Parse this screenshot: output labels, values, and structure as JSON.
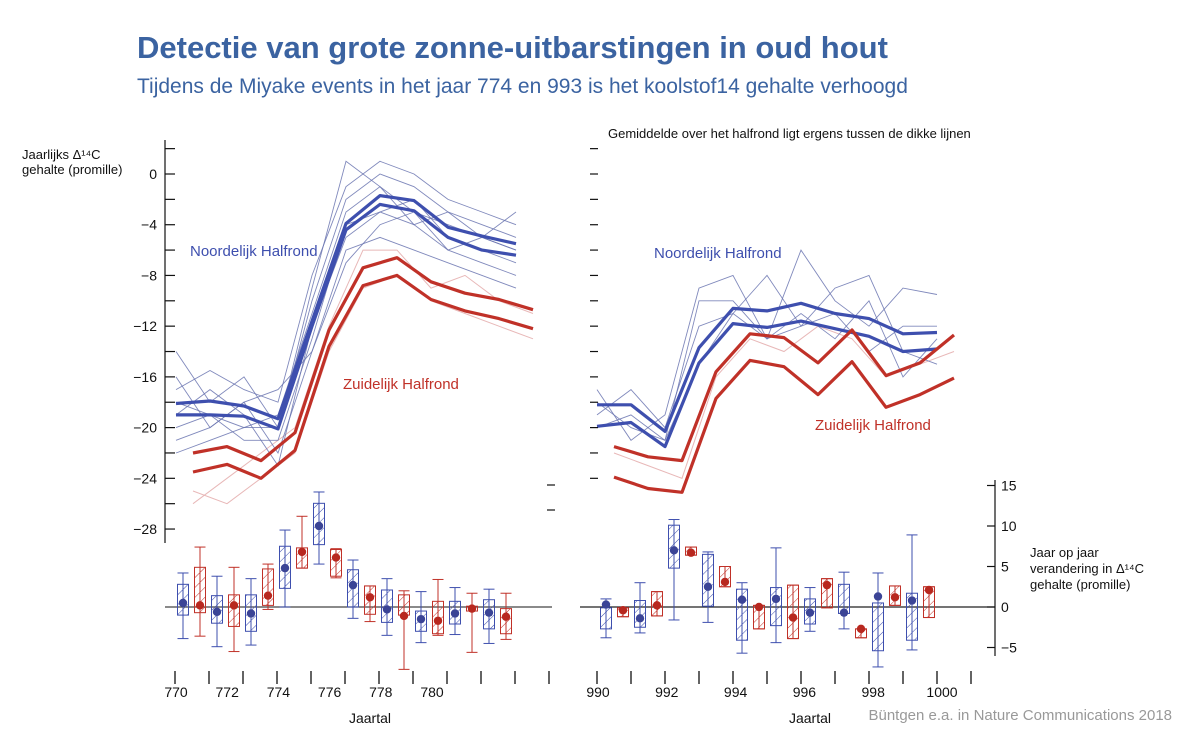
{
  "header": {
    "title": "Detectie van grote zonne-uitbarstingen in oud hout",
    "subtitle": "Tijdens de Miyake events in het jaar 774 en 993 is het koolstof14 gehalte verhoogd"
  },
  "source": "Büntgen e.a. in Nature Communications 2018",
  "colors": {
    "title": "#3b63a1",
    "north": "#3e4fae",
    "south": "#c03128",
    "north_thin": "#6a74b0",
    "south_thin": "#e8b8b8"
  },
  "chart_data": [
    {
      "type": "line",
      "panel": "774",
      "ylabel_lines": [
        "Jaarlijks Δ¹⁴C",
        "gehalte (promille)"
      ],
      "yticks": [
        0,
        -4,
        -8,
        -12,
        -16,
        -20,
        -24,
        -28
      ],
      "ylim": [
        -28,
        2
      ],
      "xlabel": "Jaartal",
      "xtick_labels": [
        "770",
        "772",
        "774",
        "776",
        "778",
        "780"
      ],
      "annotations": {
        "north": "Noordelijk Halfrond",
        "south": "Zuidelijk Halfrond"
      },
      "north_x": [
        770,
        771,
        772,
        773,
        774,
        775,
        776,
        777,
        778,
        779,
        780
      ],
      "south_x": [
        770.5,
        771.5,
        772.5,
        773.5,
        774.5,
        775.5,
        776.5,
        777.5,
        778.5,
        779.5,
        780.5
      ],
      "north_thick": [
        [
          -18.1,
          -17.9,
          -18.3,
          -19.3,
          -11.6,
          -3.9,
          -1.7,
          -2.1,
          -4.2,
          -4.9,
          -5.5
        ],
        [
          -19.0,
          -19.0,
          -19.1,
          -20.1,
          -12.0,
          -4.4,
          -2.4,
          -2.9,
          -5.0,
          -6.0,
          -6.4
        ]
      ],
      "south_thick": [
        [
          -22.0,
          -21.5,
          -22.6,
          -20.4,
          -12.3,
          -7.4,
          -6.6,
          -8.5,
          -9.4,
          -9.9,
          -10.7
        ],
        [
          -23.5,
          -22.9,
          -24.0,
          -21.8,
          -13.6,
          -8.8,
          -8.0,
          -9.9,
          -10.8,
          -11.4,
          -12.2
        ]
      ],
      "north_thin": [
        [
          -17,
          -15.5,
          -17,
          -18,
          -8,
          -1,
          1,
          0,
          -2,
          -3,
          -4
        ],
        [
          -20,
          -19,
          -21,
          -21,
          -13,
          -4,
          -3,
          -4,
          -6,
          -7,
          -8
        ],
        [
          -14,
          -18,
          -16,
          -20,
          -10,
          -2,
          0,
          -1,
          -3,
          -5,
          -6
        ],
        [
          -21,
          -20,
          -18,
          -22,
          -14,
          -6,
          -5,
          -6,
          -7,
          -8,
          -9
        ],
        [
          -18,
          -19,
          -20,
          -19,
          -11,
          -3,
          -1,
          -3,
          -4,
          -5,
          -3
        ],
        [
          -19,
          -17,
          -19,
          -23,
          -12,
          -5,
          -3,
          -2,
          -5,
          -6,
          -7
        ],
        [
          -22,
          -21,
          -20,
          -20,
          -9,
          1,
          -1,
          -4,
          -3,
          -4,
          -5
        ],
        [
          -16,
          -20,
          -18,
          -17,
          -14,
          -7,
          -4,
          -3,
          -6,
          -5,
          -6
        ]
      ],
      "south_thin": [
        [
          -25,
          -26,
          -24,
          -22,
          -14,
          -9,
          -8,
          -10,
          -11,
          -12,
          -13
        ],
        [
          -26,
          -24,
          -22,
          -20,
          -12,
          -6,
          -6,
          -9,
          -8,
          -10,
          -11
        ]
      ]
    },
    {
      "type": "line",
      "panel": "993",
      "note": "Gemiddelde over het halfrond ligt ergens tussen de dikke lijnen",
      "ylim": [
        -28,
        2
      ],
      "xlabel": "Jaartal",
      "xtick_labels": [
        "990",
        "992",
        "994",
        "996",
        "998",
        "1000"
      ],
      "annotations": {
        "north": "Noordelijk Halfrond",
        "south": "Zuidelijk Halfrond"
      },
      "north_x": [
        990,
        991,
        992,
        993,
        994,
        995,
        996,
        997,
        998,
        999,
        1000
      ],
      "south_x": [
        990.5,
        991.5,
        992.5,
        993.5,
        994.5,
        995.5,
        996.5,
        997.5,
        998.5,
        999.5,
        1000.5
      ],
      "north_thick": [
        [
          -18.2,
          -18.2,
          -20.3,
          -13.7,
          -10.6,
          -10.8,
          -10.2,
          -11.0,
          -11.4,
          -12.6,
          -12.5
        ],
        [
          -19.9,
          -19.6,
          -21.5,
          -14.9,
          -11.8,
          -12.1,
          -11.6,
          -12.2,
          -12.8,
          -14.0,
          -13.8
        ]
      ],
      "south_thick": [
        [
          -21.5,
          -22.3,
          -22.6,
          -15.6,
          -12.6,
          -12.9,
          -14.9,
          -12.3,
          -15.9,
          -14.9,
          -12.7
        ],
        [
          -23.9,
          -24.8,
          -25.1,
          -17.7,
          -14.7,
          -15.2,
          -17.4,
          -14.8,
          -18.4,
          -17.4,
          -16.1
        ]
      ],
      "north_thin": [
        [
          -17,
          -21,
          -19,
          -9,
          -8,
          -13,
          -6,
          -10,
          -12,
          -9,
          -9.5
        ],
        [
          -19,
          -17,
          -20,
          -12,
          -11,
          -8,
          -12,
          -9,
          -8,
          -14,
          -15
        ],
        [
          -20,
          -19,
          -21,
          -10,
          -10,
          -13,
          -11,
          -13,
          -10,
          -16,
          -13
        ],
        [
          -18,
          -20,
          -21,
          -15,
          -11,
          -13,
          -12,
          -11,
          -14,
          -12,
          -12
        ]
      ],
      "south_thin": [
        [
          -22,
          -23,
          -24,
          -16,
          -13,
          -14,
          -12,
          -13,
          -16,
          -15,
          -14
        ]
      ]
    },
    {
      "type": "box",
      "panel": "774-change",
      "ylabel_lines": [
        "Jaar op jaar",
        "verandering in Δ¹⁴C",
        "gehalte (promille)"
      ],
      "yticks": [
        15,
        10,
        5,
        0,
        -5
      ],
      "ylim": [
        -7,
        15
      ],
      "boxes": [
        {
          "hemisphere": "north",
          "whisker_high": 4.2,
          "q3": 2.8,
          "q1": -1.0,
          "whisker_low": -3.9,
          "mean": 0.5
        },
        {
          "hemisphere": "south",
          "whisker_high": 7.4,
          "q3": 4.9,
          "q1": -0.7,
          "whisker_low": -3.6,
          "mean": 0.2
        },
        {
          "hemisphere": "north",
          "whisker_high": 3.8,
          "q3": 1.4,
          "q1": -2.0,
          "whisker_low": -4.9,
          "mean": -0.6
        },
        {
          "hemisphere": "south",
          "whisker_high": 4.9,
          "q3": 1.5,
          "q1": -2.4,
          "whisker_low": -5.5,
          "mean": 0.2
        },
        {
          "hemisphere": "north",
          "whisker_high": 3.5,
          "q3": 1.5,
          "q1": -3.0,
          "whisker_low": -4.7,
          "mean": -0.8
        },
        {
          "hemisphere": "south",
          "whisker_high": 5.3,
          "q3": 4.7,
          "q1": 0.2,
          "whisker_low": -0.3,
          "mean": 1.4
        },
        {
          "hemisphere": "north",
          "whisker_high": 9.5,
          "q3": 7.5,
          "q1": 2.3,
          "whisker_low": 0.0,
          "mean": 4.8
        },
        {
          "hemisphere": "south",
          "whisker_high": 11.2,
          "q3": 7.3,
          "q1": 4.8,
          "whisker_low": 4.8,
          "mean": 6.8
        },
        {
          "hemisphere": "north",
          "whisker_high": 14.2,
          "q3": 12.8,
          "q1": 7.7,
          "whisker_low": 5.3,
          "mean": 10.0
        },
        {
          "hemisphere": "south",
          "whisker_high": 7.2,
          "q3": 7.1,
          "q1": 3.8,
          "whisker_low": 3.6,
          "mean": 6.1
        },
        {
          "hemisphere": "north",
          "whisker_high": 5.8,
          "q3": 4.6,
          "q1": 0.0,
          "whisker_low": -1.4,
          "mean": 2.7
        },
        {
          "hemisphere": "south",
          "whisker_high": 2.6,
          "q3": 2.6,
          "q1": -0.9,
          "whisker_low": -1.8,
          "mean": 1.2
        },
        {
          "hemisphere": "north",
          "whisker_high": 3.5,
          "q3": 2.1,
          "q1": -1.9,
          "whisker_low": -3.5,
          "mean": -0.3
        },
        {
          "hemisphere": "south",
          "whisker_high": 2.0,
          "q3": 1.5,
          "q1": -1.0,
          "whisker_low": -7.7,
          "mean": -1.1
        },
        {
          "hemisphere": "north",
          "whisker_high": 1.9,
          "q3": -0.5,
          "q1": -3.0,
          "whisker_low": -4.4,
          "mean": -1.5
        },
        {
          "hemisphere": "south",
          "whisker_high": 3.4,
          "q3": 0.7,
          "q1": -3.3,
          "whisker_low": -3.5,
          "mean": -1.7
        },
        {
          "hemisphere": "north",
          "whisker_high": 2.4,
          "q3": 0.7,
          "q1": -2.1,
          "whisker_low": -3.4,
          "mean": -0.8
        },
        {
          "hemisphere": "south",
          "whisker_high": 1.7,
          "q3": 0.1,
          "q1": -0.5,
          "whisker_low": -5.6,
          "mean": -0.2
        },
        {
          "hemisphere": "north",
          "whisker_high": 2.2,
          "q3": 0.9,
          "q1": -2.7,
          "whisker_low": -4.5,
          "mean": -0.7
        },
        {
          "hemisphere": "south",
          "whisker_high": 1.7,
          "q3": -0.2,
          "q1": -3.3,
          "whisker_low": -4.0,
          "mean": -1.2
        }
      ]
    },
    {
      "type": "box",
      "panel": "993-change",
      "ylim": [
        -7,
        15
      ],
      "boxes": [
        {
          "hemisphere": "north",
          "whisker_high": 1.0,
          "q3": -0.1,
          "q1": -2.7,
          "whisker_low": -3.8,
          "mean": 0.3
        },
        {
          "hemisphere": "south",
          "whisker_high": -0.1,
          "q3": -0.1,
          "q1": -1.2,
          "whisker_low": -1.2,
          "mean": -0.4
        },
        {
          "hemisphere": "north",
          "whisker_high": 3.0,
          "q3": 0.8,
          "q1": -2.5,
          "whisker_low": -3.2,
          "mean": -1.4
        },
        {
          "hemisphere": "south",
          "whisker_high": 1.9,
          "q3": 1.9,
          "q1": -1.1,
          "whisker_low": -1.1,
          "mean": 0.2
        },
        {
          "hemisphere": "north",
          "whisker_high": 10.8,
          "q3": 10.1,
          "q1": 4.8,
          "whisker_low": -1.6,
          "mean": 7.0
        },
        {
          "hemisphere": "south",
          "whisker_high": 7.4,
          "q3": 7.4,
          "q1": 6.4,
          "whisker_low": 6.4,
          "mean": 6.7
        },
        {
          "hemisphere": "north",
          "whisker_high": 6.8,
          "q3": 6.5,
          "q1": 0.1,
          "whisker_low": -1.9,
          "mean": 2.5
        },
        {
          "hemisphere": "south",
          "whisker_high": 5.0,
          "q3": 5.0,
          "q1": 2.5,
          "whisker_low": 2.5,
          "mean": 3.1
        },
        {
          "hemisphere": "north",
          "whisker_high": 3.0,
          "q3": 2.2,
          "q1": -4.1,
          "whisker_low": -5.7,
          "mean": 0.9
        },
        {
          "hemisphere": "south",
          "whisker_high": 0.2,
          "q3": 0.2,
          "q1": -2.7,
          "whisker_low": -2.7,
          "mean": 0.0
        },
        {
          "hemisphere": "north",
          "whisker_high": 7.3,
          "q3": 2.4,
          "q1": -2.3,
          "whisker_low": -4.4,
          "mean": 1.0
        },
        {
          "hemisphere": "south",
          "whisker_high": 2.7,
          "q3": 2.7,
          "q1": -3.9,
          "whisker_low": -3.9,
          "mean": -1.3
        },
        {
          "hemisphere": "north",
          "whisker_high": 2.4,
          "q3": 1.0,
          "q1": -2.1,
          "whisker_low": -3.0,
          "mean": -0.7
        },
        {
          "hemisphere": "south",
          "whisker_high": 3.5,
          "q3": 3.5,
          "q1": -0.1,
          "whisker_low": -0.1,
          "mean": 2.7
        },
        {
          "hemisphere": "north",
          "whisker_high": 4.3,
          "q3": 2.8,
          "q1": -0.8,
          "whisker_low": -2.7,
          "mean": -0.7
        },
        {
          "hemisphere": "south",
          "whisker_high": -2.7,
          "q3": -2.7,
          "q1": -3.8,
          "whisker_low": -3.8,
          "mean": -2.7
        },
        {
          "hemisphere": "north",
          "whisker_high": 4.2,
          "q3": 0.5,
          "q1": -5.4,
          "whisker_low": -7.4,
          "mean": 1.3
        },
        {
          "hemisphere": "south",
          "whisker_high": 2.6,
          "q3": 2.6,
          "q1": 0.2,
          "whisker_low": 0.2,
          "mean": 1.2
        },
        {
          "hemisphere": "north",
          "whisker_high": 8.9,
          "q3": 1.7,
          "q1": -4.1,
          "whisker_low": -5.3,
          "mean": 0.8
        },
        {
          "hemisphere": "south",
          "whisker_high": 2.5,
          "q3": 2.5,
          "q1": -1.3,
          "whisker_low": -1.3,
          "mean": 2.1
        }
      ]
    }
  ]
}
